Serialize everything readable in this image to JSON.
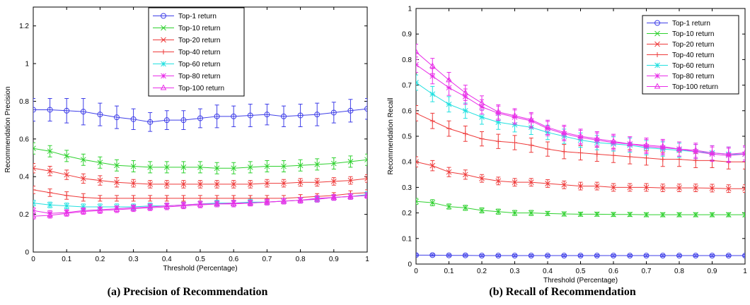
{
  "colors": {
    "Top-1 return": "#3f3fe8",
    "Top-10 return": "#2ed12e",
    "Top-20 return": "#ee3a3a",
    "Top-40 return": "#ee3a3a",
    "Top-60 return": "#22e0e0",
    "Top-80 return": "#e82ee8",
    "Top-100 return": "#e82ee8"
  },
  "markers": {
    "Top-1 return": "circle",
    "Top-10 return": "x",
    "Top-20 return": "x",
    "Top-40 return": "plus",
    "Top-60 return": "star",
    "Top-80 return": "star",
    "Top-100 return": "triangle"
  },
  "chart_data": [
    {
      "id": "precision",
      "type": "line",
      "caption": "(a) Precision of Recommendation",
      "xlabel": "Threshold (Percentage)",
      "ylabel": "Recommendation Precision",
      "xlim": [
        0,
        1
      ],
      "ylim": [
        0,
        1.3
      ],
      "xticks": [
        "0",
        "0.1",
        "0.2",
        "0.3",
        "0.4",
        "0.5",
        "0.6",
        "0.7",
        "0.8",
        "0.9",
        "1"
      ],
      "yticks": [
        "0",
        "0.2",
        "0.4",
        "0.6",
        "0.8",
        "1",
        "1.2"
      ],
      "grid": false,
      "legend_position": "top-center",
      "x": [
        0,
        0.05,
        0.1,
        0.15,
        0.2,
        0.25,
        0.3,
        0.35,
        0.4,
        0.45,
        0.5,
        0.55,
        0.6,
        0.65,
        0.7,
        0.75,
        0.8,
        0.85,
        0.9,
        0.95,
        1
      ],
      "series": [
        {
          "name": "Top-1 return",
          "values": [
            0.755,
            0.755,
            0.75,
            0.745,
            0.73,
            0.715,
            0.705,
            0.69,
            0.7,
            0.7,
            0.71,
            0.72,
            0.72,
            0.725,
            0.73,
            0.72,
            0.725,
            0.73,
            0.74,
            0.75,
            0.76
          ],
          "err": [
            0.06,
            0.06,
            0.065,
            0.07,
            0.06,
            0.06,
            0.055,
            0.05,
            0.05,
            0.05,
            0.05,
            0.06,
            0.055,
            0.06,
            0.055,
            0.055,
            0.06,
            0.06,
            0.055,
            0.06,
            0.055
          ]
        },
        {
          "name": "Top-10 return",
          "values": [
            0.55,
            0.535,
            0.51,
            0.49,
            0.475,
            0.46,
            0.455,
            0.45,
            0.45,
            0.45,
            0.45,
            0.445,
            0.445,
            0.45,
            0.455,
            0.455,
            0.46,
            0.465,
            0.47,
            0.48,
            0.49
          ],
          "err": [
            0.03,
            0.03,
            0.03,
            0.03,
            0.03,
            0.03,
            0.03,
            0.03,
            0.03,
            0.03,
            0.03,
            0.03,
            0.03,
            0.03,
            0.03,
            0.03,
            0.03,
            0.03,
            0.03,
            0.03,
            0.03
          ]
        },
        {
          "name": "Top-20 return",
          "values": [
            0.445,
            0.43,
            0.41,
            0.39,
            0.38,
            0.37,
            0.365,
            0.36,
            0.36,
            0.36,
            0.36,
            0.36,
            0.36,
            0.36,
            0.365,
            0.365,
            0.37,
            0.37,
            0.375,
            0.38,
            0.39
          ],
          "err": [
            0.025,
            0.025,
            0.025,
            0.025,
            0.025,
            0.025,
            0.02,
            0.02,
            0.02,
            0.02,
            0.02,
            0.02,
            0.02,
            0.02,
            0.02,
            0.02,
            0.02,
            0.02,
            0.02,
            0.02,
            0.02
          ]
        },
        {
          "name": "Top-40 return",
          "values": [
            0.33,
            0.315,
            0.3,
            0.29,
            0.285,
            0.285,
            0.285,
            0.285,
            0.285,
            0.285,
            0.285,
            0.285,
            0.285,
            0.285,
            0.285,
            0.285,
            0.29,
            0.295,
            0.3,
            0.31,
            0.315
          ],
          "err": [
            0.02,
            0.02,
            0.02,
            0.02,
            0.015,
            0.015,
            0.015,
            0.015,
            0.015,
            0.015,
            0.015,
            0.015,
            0.015,
            0.015,
            0.015,
            0.015,
            0.015,
            0.015,
            0.015,
            0.015,
            0.015
          ]
        },
        {
          "name": "Top-60 return",
          "values": [
            0.26,
            0.25,
            0.245,
            0.24,
            0.24,
            0.24,
            0.24,
            0.245,
            0.245,
            0.25,
            0.255,
            0.26,
            0.26,
            0.265,
            0.265,
            0.27,
            0.275,
            0.28,
            0.29,
            0.295,
            0.305
          ],
          "err": [
            0.015,
            0.015,
            0.015,
            0.015,
            0.015,
            0.015,
            0.015,
            0.015,
            0.015,
            0.015,
            0.015,
            0.015,
            0.015,
            0.015,
            0.015,
            0.015,
            0.015,
            0.015,
            0.015,
            0.015,
            0.015
          ]
        },
        {
          "name": "Top-80 return",
          "values": [
            0.22,
            0.205,
            0.21,
            0.22,
            0.225,
            0.23,
            0.235,
            0.24,
            0.245,
            0.25,
            0.255,
            0.255,
            0.26,
            0.26,
            0.265,
            0.27,
            0.275,
            0.285,
            0.29,
            0.295,
            0.3
          ],
          "err": [
            0.015,
            0.015,
            0.015,
            0.015,
            0.015,
            0.015,
            0.015,
            0.015,
            0.015,
            0.015,
            0.015,
            0.015,
            0.015,
            0.015,
            0.015,
            0.015,
            0.015,
            0.015,
            0.015,
            0.015,
            0.015
          ]
        },
        {
          "name": "Top-100 return",
          "values": [
            0.19,
            0.195,
            0.205,
            0.215,
            0.22,
            0.225,
            0.23,
            0.235,
            0.24,
            0.245,
            0.25,
            0.255,
            0.255,
            0.26,
            0.265,
            0.27,
            0.275,
            0.28,
            0.29,
            0.295,
            0.3
          ],
          "err": [
            0.015,
            0.015,
            0.015,
            0.015,
            0.015,
            0.015,
            0.015,
            0.015,
            0.015,
            0.015,
            0.015,
            0.015,
            0.015,
            0.015,
            0.015,
            0.015,
            0.015,
            0.015,
            0.015,
            0.015,
            0.015
          ]
        }
      ]
    },
    {
      "id": "recall",
      "type": "line",
      "caption": "(b) Recall of Recommendation",
      "xlabel": "Threshold (Percentage)",
      "ylabel": "Recommendation Recall",
      "xlim": [
        0,
        1
      ],
      "ylim": [
        0,
        1
      ],
      "xticks": [
        "0",
        "0.1",
        "0.2",
        "0.3",
        "0.4",
        "0.5",
        "0.6",
        "0.7",
        "0.8",
        "0.9",
        "1"
      ],
      "yticks": [
        "0",
        "0.1",
        "0.2",
        "0.3",
        "0.4",
        "0.5",
        "0.6",
        "0.7",
        "0.8",
        "0.9",
        "1"
      ],
      "grid": false,
      "legend_position": "top-right",
      "x": [
        0,
        0.05,
        0.1,
        0.15,
        0.2,
        0.25,
        0.3,
        0.35,
        0.4,
        0.45,
        0.5,
        0.55,
        0.6,
        0.65,
        0.7,
        0.75,
        0.8,
        0.85,
        0.9,
        0.95,
        1
      ],
      "series": [
        {
          "name": "Top-1 return",
          "values": [
            0.035,
            0.035,
            0.034,
            0.034,
            0.033,
            0.033,
            0.033,
            0.033,
            0.033,
            0.033,
            0.033,
            0.033,
            0.033,
            0.033,
            0.033,
            0.033,
            0.033,
            0.033,
            0.033,
            0.033,
            0.033
          ],
          "err": [
            0.004,
            0.004,
            0.004,
            0.004,
            0.004,
            0.004,
            0.004,
            0.004,
            0.004,
            0.004,
            0.004,
            0.004,
            0.004,
            0.004,
            0.004,
            0.004,
            0.004,
            0.004,
            0.004,
            0.004,
            0.004
          ]
        },
        {
          "name": "Top-10 return",
          "values": [
            0.245,
            0.24,
            0.225,
            0.22,
            0.21,
            0.205,
            0.2,
            0.2,
            0.198,
            0.196,
            0.195,
            0.195,
            0.194,
            0.194,
            0.193,
            0.193,
            0.193,
            0.193,
            0.193,
            0.193,
            0.193
          ],
          "err": [
            0.012,
            0.012,
            0.01,
            0.01,
            0.01,
            0.01,
            0.01,
            0.01,
            0.008,
            0.008,
            0.008,
            0.008,
            0.008,
            0.008,
            0.008,
            0.008,
            0.008,
            0.008,
            0.008,
            0.008,
            0.008
          ]
        },
        {
          "name": "Top-20 return",
          "values": [
            0.4,
            0.385,
            0.36,
            0.35,
            0.335,
            0.325,
            0.32,
            0.32,
            0.315,
            0.31,
            0.305,
            0.305,
            0.3,
            0.3,
            0.3,
            0.298,
            0.298,
            0.298,
            0.297,
            0.295,
            0.295
          ],
          "err": [
            0.02,
            0.02,
            0.018,
            0.018,
            0.015,
            0.015,
            0.015,
            0.015,
            0.015,
            0.015,
            0.015,
            0.015,
            0.015,
            0.015,
            0.015,
            0.015,
            0.015,
            0.015,
            0.015,
            0.015,
            0.015
          ]
        },
        {
          "name": "Top-40 return",
          "values": [
            0.59,
            0.56,
            0.53,
            0.51,
            0.49,
            0.48,
            0.475,
            0.465,
            0.45,
            0.44,
            0.435,
            0.43,
            0.425,
            0.42,
            0.415,
            0.41,
            0.41,
            0.405,
            0.405,
            0.4,
            0.4
          ],
          "err": [
            0.03,
            0.03,
            0.03,
            0.03,
            0.028,
            0.028,
            0.028,
            0.028,
            0.028,
            0.028,
            0.028,
            0.028,
            0.028,
            0.028,
            0.028,
            0.028,
            0.028,
            0.028,
            0.028,
            0.028,
            0.028
          ]
        },
        {
          "name": "Top-60 return",
          "values": [
            0.71,
            0.665,
            0.625,
            0.6,
            0.575,
            0.555,
            0.545,
            0.535,
            0.515,
            0.5,
            0.485,
            0.475,
            0.47,
            0.465,
            0.455,
            0.45,
            0.445,
            0.44,
            0.435,
            0.43,
            0.43
          ],
          "err": [
            0.03,
            0.03,
            0.03,
            0.03,
            0.028,
            0.028,
            0.028,
            0.028,
            0.028,
            0.028,
            0.028,
            0.028,
            0.028,
            0.028,
            0.028,
            0.028,
            0.028,
            0.028,
            0.028,
            0.028,
            0.028
          ]
        },
        {
          "name": "Top-80 return",
          "values": [
            0.78,
            0.735,
            0.69,
            0.655,
            0.615,
            0.59,
            0.575,
            0.56,
            0.53,
            0.51,
            0.495,
            0.485,
            0.475,
            0.47,
            0.46,
            0.455,
            0.45,
            0.44,
            0.43,
            0.425,
            0.43
          ],
          "err": [
            0.03,
            0.03,
            0.03,
            0.03,
            0.028,
            0.028,
            0.028,
            0.028,
            0.028,
            0.028,
            0.028,
            0.028,
            0.028,
            0.028,
            0.028,
            0.028,
            0.028,
            0.028,
            0.028,
            0.028,
            0.028
          ]
        },
        {
          "name": "Top-100 return",
          "values": [
            0.83,
            0.775,
            0.72,
            0.67,
            0.63,
            0.595,
            0.58,
            0.565,
            0.535,
            0.515,
            0.5,
            0.49,
            0.48,
            0.47,
            0.465,
            0.46,
            0.45,
            0.445,
            0.435,
            0.43,
            0.435
          ],
          "err": [
            0.03,
            0.03,
            0.03,
            0.03,
            0.028,
            0.028,
            0.028,
            0.028,
            0.028,
            0.028,
            0.028,
            0.028,
            0.028,
            0.028,
            0.028,
            0.028,
            0.028,
            0.028,
            0.028,
            0.028,
            0.028
          ]
        }
      ]
    }
  ]
}
